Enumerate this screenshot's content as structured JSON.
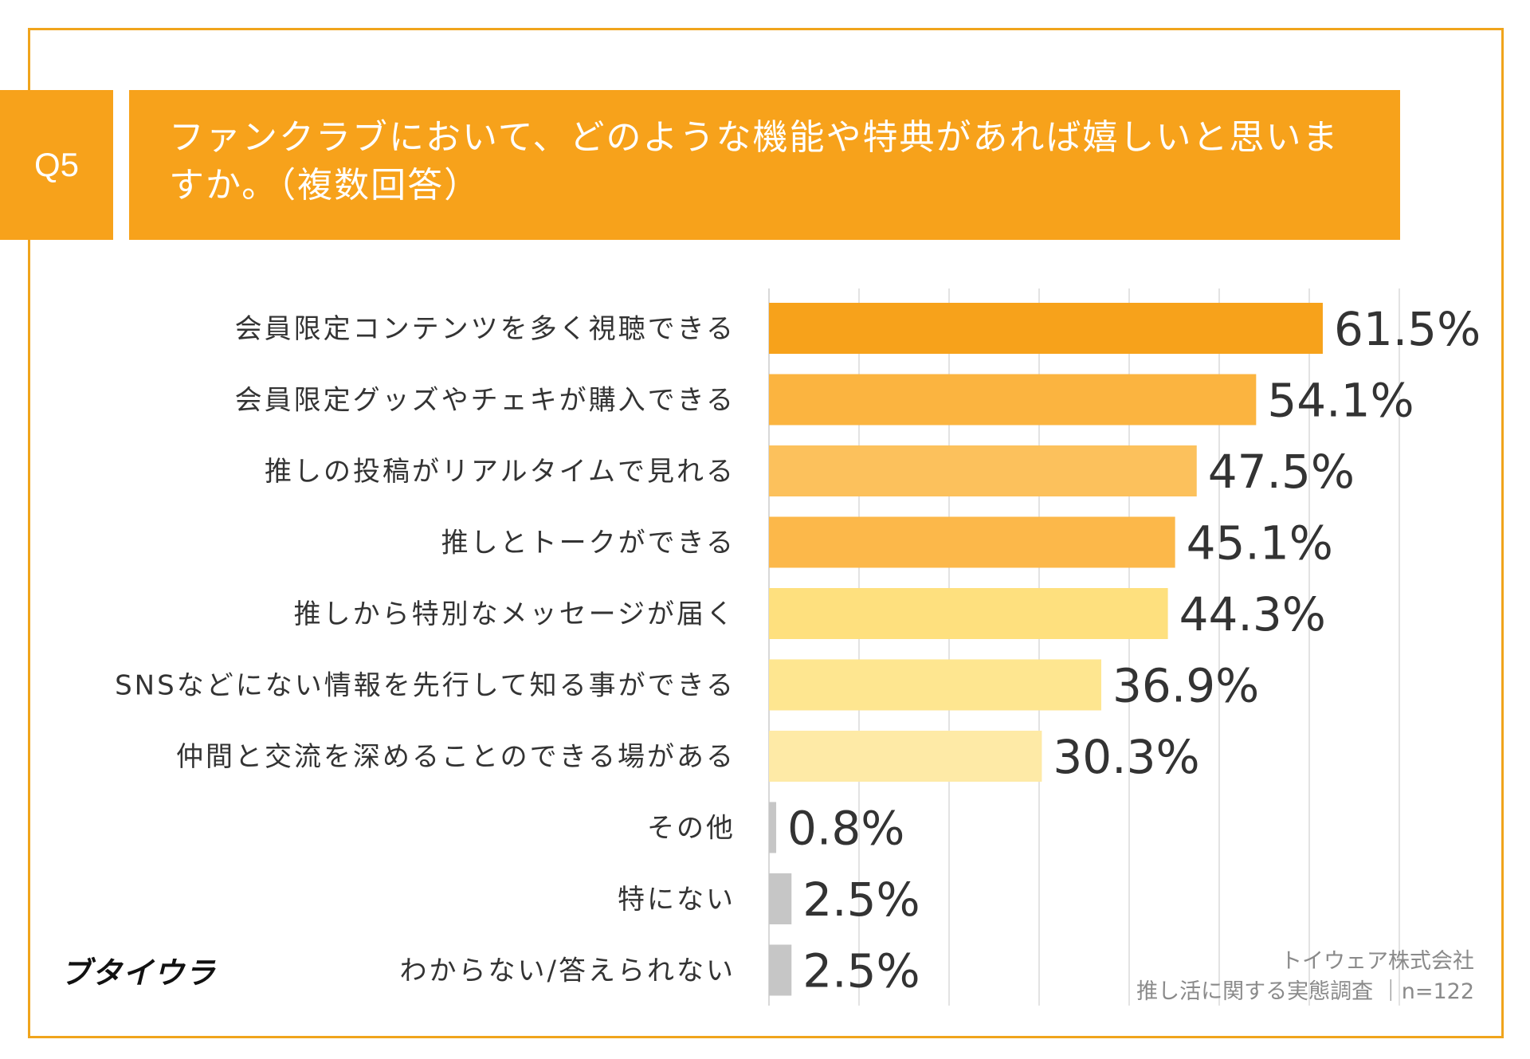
{
  "question": {
    "number": "Q5",
    "text": "ファンクラブにおいて、どのような機能や特典があれば嬉しいと思いますか。（複数回答）"
  },
  "chart_data": {
    "type": "bar",
    "orientation": "horizontal",
    "title": "ファンクラブにおいて、どのような機能や特典があれば嬉しいと思いますか。（複数回答）",
    "unit": "%",
    "xlim": [
      0,
      70
    ],
    "grid": true,
    "categories": [
      "会員限定コンテンツを多く視聴できる",
      "会員限定グッズやチェキが購入できる",
      "推しの投稿がリアルタイムで見れる",
      "推しとトークができる",
      "推しから特別なメッセージが届く",
      "SNSなどにない情報を先行して知る事ができる",
      "仲間と交流を深めることのできる場がある",
      "その他",
      "特にない",
      "わからない/答えられない"
    ],
    "values": [
      61.5,
      54.1,
      47.5,
      45.1,
      44.3,
      36.9,
      30.3,
      0.8,
      2.5,
      2.5
    ],
    "value_labels": [
      "61.5%",
      "54.1%",
      "47.5%",
      "45.1%",
      "44.3%",
      "36.9%",
      "30.3%",
      "0.8%",
      "2.5%",
      "2.5%"
    ],
    "colors": [
      "#f7a21b",
      "#fbb440",
      "#fcc15c",
      "#fcb84a",
      "#fee07e",
      "#fee690",
      "#feeaa6",
      "#c6c6c6",
      "#c6c6c6",
      "#c6c6c6"
    ]
  },
  "footer": {
    "logo": "ブタイウラ",
    "source_company": "トイウェア株式会社",
    "source_survey": "推し活に関する実態調査 ｜n=122"
  }
}
